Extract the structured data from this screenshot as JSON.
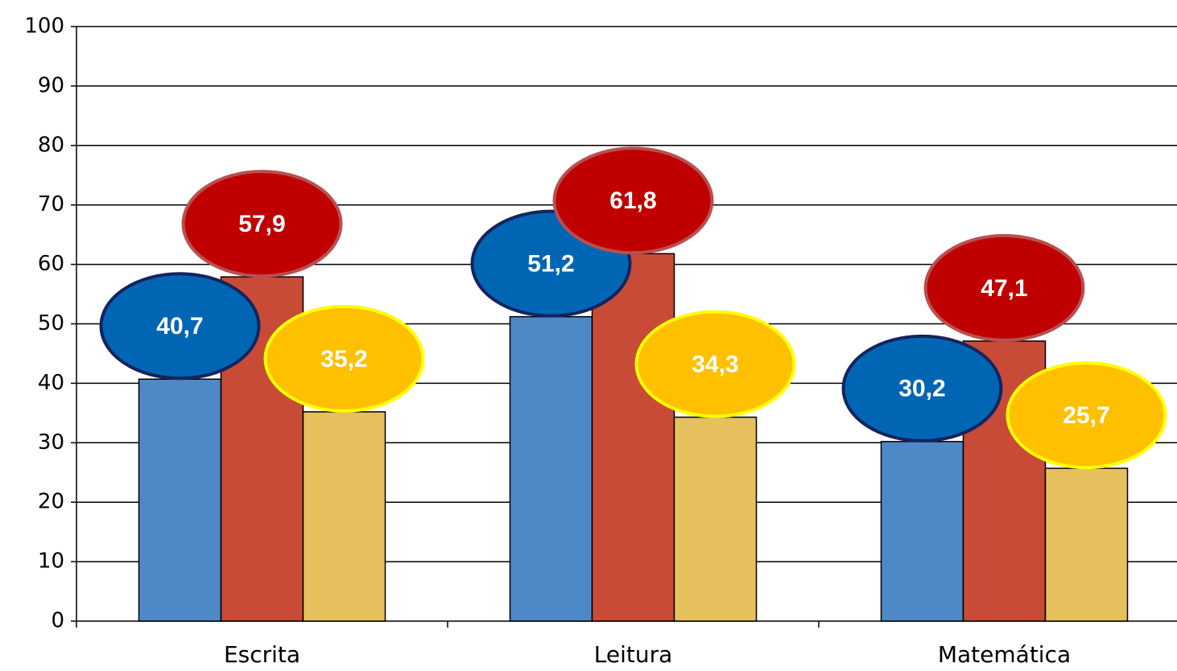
{
  "chart_data": {
    "type": "bar",
    "categories": [
      "Escrita",
      "Leitura",
      "Matemática"
    ],
    "series": [
      {
        "color": "#4f88c6",
        "values": [
          40.7,
          51.2,
          30.2
        ],
        "value_labels": [
          "40,7",
          "51,2",
          "30,2"
        ]
      },
      {
        "color": "#c84b37",
        "values": [
          57.9,
          61.8,
          47.1
        ],
        "value_labels": [
          "57,9",
          "61,8",
          "47,1"
        ]
      },
      {
        "color": "#e6c05c",
        "values": [
          35.2,
          34.3,
          25.7
        ],
        "value_labels": [
          "35,2",
          "34,3",
          "25,7"
        ]
      }
    ],
    "ylim": [
      0,
      100
    ],
    "yticks": [
      0,
      10,
      20,
      30,
      40,
      50,
      60,
      70,
      80,
      90,
      100
    ],
    "grid": true
  }
}
